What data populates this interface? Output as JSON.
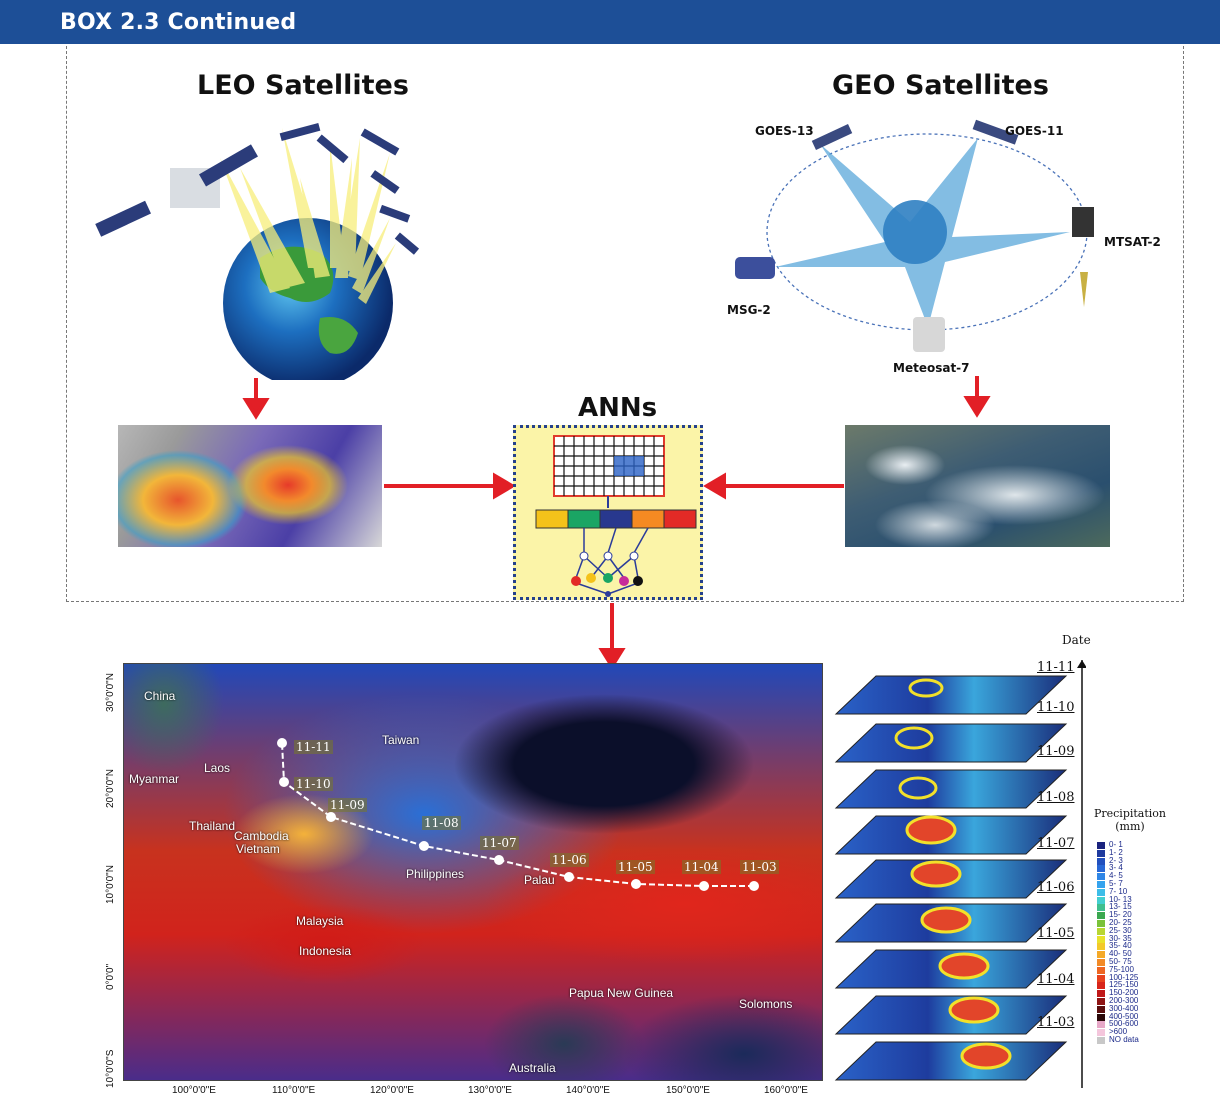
{
  "header": {
    "title": "BOX 2.3  Continued",
    "bg_color": "#1d4f97"
  },
  "leo": {
    "title": "LEO Satellites"
  },
  "geo": {
    "title": "GEO Satellites",
    "satellites": [
      "GOES-13",
      "GOES-11",
      "MTSAT-2",
      "MSG-2",
      "Meteosat-7"
    ]
  },
  "anns": {
    "title": "ANNs"
  },
  "map": {
    "labels": [
      "China",
      "Taiwan",
      "Laos",
      "Myanmar",
      "Thailand",
      "Cambodia",
      "Vietnam",
      "Philippines",
      "Palau",
      "Malaysia",
      "Indonesia",
      "Papua New Guinea",
      "Solomons",
      "Australia"
    ],
    "track_dates": [
      "11-11",
      "11-10",
      "11-09",
      "11-08",
      "11-07",
      "11-06",
      "11-05",
      "11-04",
      "11-03"
    ],
    "x_ticks": [
      "100°0'0\"E",
      "110°0'0\"E",
      "120°0'0\"E",
      "130°0'0\"E",
      "140°0'0\"E",
      "150°0'0\"E",
      "160°0'0\"E"
    ],
    "y_ticks": [
      "30°0'0\"N",
      "20°0'0\"N",
      "10°0'0\"N",
      "0°0'0\"",
      "10°0'0\"S"
    ]
  },
  "stack": {
    "axis_label": "Date",
    "dates": [
      "11-11",
      "11-10",
      "11-09",
      "11-08",
      "11-07",
      "11-06",
      "11-05",
      "11-04",
      "11-03"
    ]
  },
  "legend": {
    "title_line1": "Precipitation",
    "title_line2": "(mm)",
    "items": [
      {
        "label": "0- 1",
        "color": "#1a237e"
      },
      {
        "label": "1- 2",
        "color": "#1e3a9e"
      },
      {
        "label": "2- 3",
        "color": "#2250be"
      },
      {
        "label": "3- 4",
        "color": "#2868d6"
      },
      {
        "label": "4- 5",
        "color": "#2f86e6"
      },
      {
        "label": "5- 7",
        "color": "#35a3ee"
      },
      {
        "label": "7- 10",
        "color": "#3cbde8"
      },
      {
        "label": "10- 13",
        "color": "#43cfd0"
      },
      {
        "label": "13- 15",
        "color": "#3fbf8e"
      },
      {
        "label": "15- 20",
        "color": "#3aa84f"
      },
      {
        "label": "20- 25",
        "color": "#7ac23a"
      },
      {
        "label": "25- 30",
        "color": "#b8d632"
      },
      {
        "label": "30- 35",
        "color": "#e8e22c"
      },
      {
        "label": "35- 40",
        "color": "#f3c92a"
      },
      {
        "label": "40- 50",
        "color": "#f5a928"
      },
      {
        "label": "50- 75",
        "color": "#f28a26"
      },
      {
        "label": "75-100",
        "color": "#ee6622"
      },
      {
        "label": "100-125",
        "color": "#e8421e"
      },
      {
        "label": "125-150",
        "color": "#d8251a"
      },
      {
        "label": "150-200",
        "color": "#c01818"
      },
      {
        "label": "200-300",
        "color": "#8e1414"
      },
      {
        "label": "300-400",
        "color": "#5a0e0e"
      },
      {
        "label": "400-500",
        "color": "#2a0808"
      },
      {
        "label": "500-600",
        "color": "#e7a8c8"
      },
      {
        "label": ">600",
        "color": "#f4c6dc"
      },
      {
        "label": "NO data",
        "color": "#c8c8c8"
      }
    ]
  },
  "colors": {
    "arrow": "#e21f26",
    "ann_bg": "#fbf4a8",
    "ann_border": "#24408c"
  }
}
